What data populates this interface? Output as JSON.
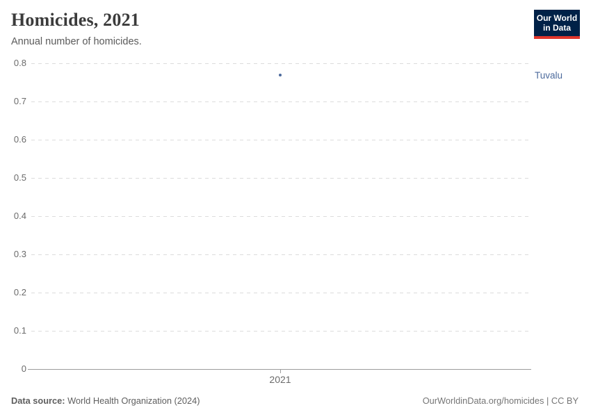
{
  "header": {
    "title": "Homicides, 2021",
    "subtitle": "Annual number of homicides."
  },
  "logo": {
    "line1": "Our World",
    "line2": "in Data",
    "bg_color": "#002147",
    "accent_color": "#e0362c"
  },
  "chart_data": {
    "type": "scatter",
    "title": "Homicides, 2021",
    "x": [
      2021
    ],
    "series": [
      {
        "name": "Tuvalu",
        "values": [
          0.77
        ],
        "color": "#4c6a9c"
      }
    ],
    "xlabel": "",
    "ylabel": "",
    "ylim": [
      0,
      0.8
    ],
    "yticks": [
      0,
      0.1,
      0.2,
      0.3,
      0.4,
      0.5,
      0.6,
      0.7,
      0.8
    ],
    "ytick_labels": [
      "0",
      "0.1",
      "0.2",
      "0.3",
      "0.4",
      "0.5",
      "0.6",
      "0.7",
      "0.8"
    ],
    "xtick_labels": [
      "2021"
    ],
    "grid": "horizontal-dashed",
    "legend_position": "right-of-plot"
  },
  "footer": {
    "source_label": "Data source:",
    "source_text": " World Health Organization (2024)",
    "credit": "OurWorldinData.org/homicides | CC BY"
  }
}
